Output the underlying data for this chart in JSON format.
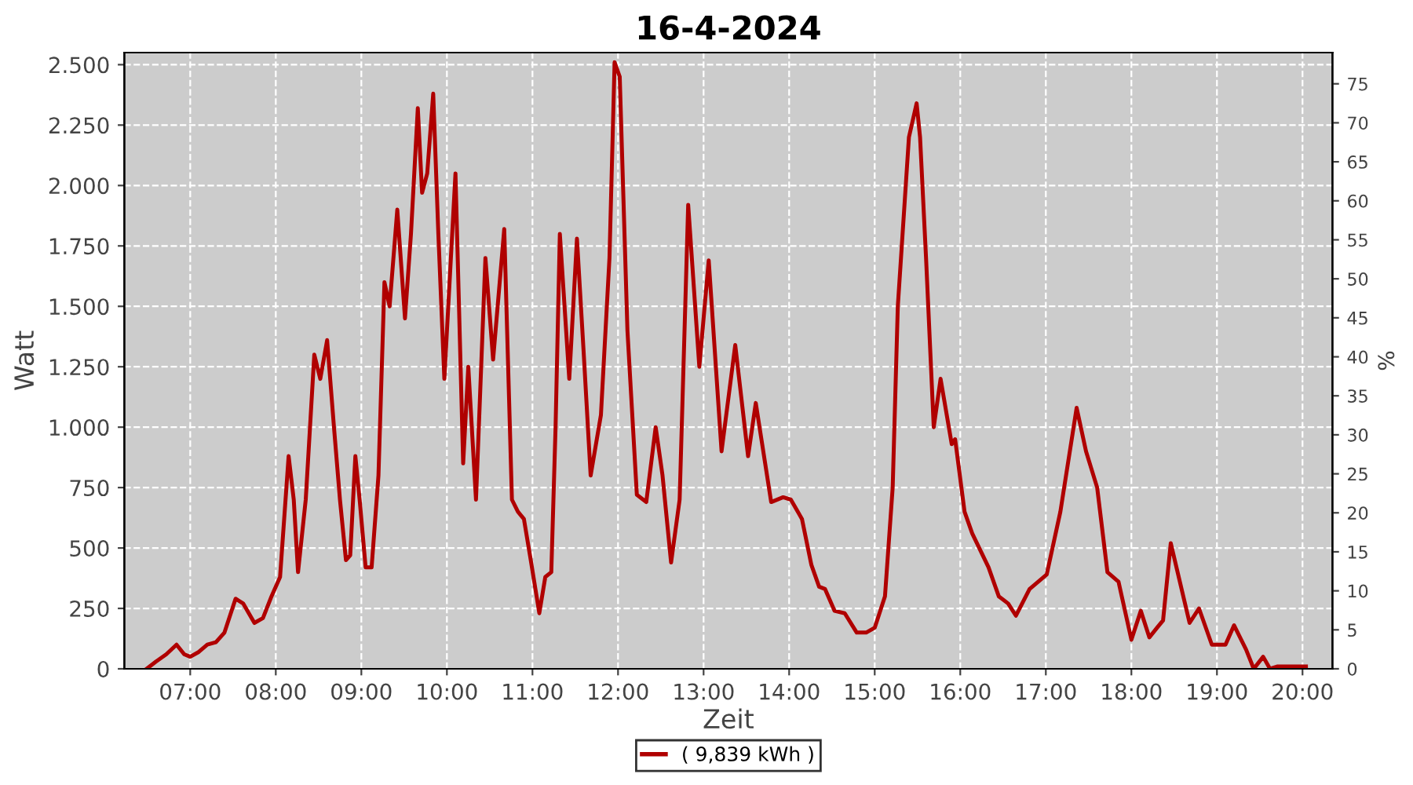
{
  "chart_data": {
    "type": "line",
    "title": "16-4-2024",
    "xlabel": "Zeit",
    "ylabel": "Watt",
    "y2label": "%",
    "xlim": [
      6.23,
      20.35
    ],
    "xticks": [
      {
        "value": 7,
        "label": "07:00"
      },
      {
        "value": 8,
        "label": "08:00"
      },
      {
        "value": 9,
        "label": "09:00"
      },
      {
        "value": 10,
        "label": "10:00"
      },
      {
        "value": 11,
        "label": "11:00"
      },
      {
        "value": 12,
        "label": "12:00"
      },
      {
        "value": 13,
        "label": "13:00"
      },
      {
        "value": 14,
        "label": "14:00"
      },
      {
        "value": 15,
        "label": "15:00"
      },
      {
        "value": 16,
        "label": "16:00"
      },
      {
        "value": 17,
        "label": "17:00"
      },
      {
        "value": 18,
        "label": "18:00"
      },
      {
        "value": 19,
        "label": "19:00"
      },
      {
        "value": 20,
        "label": "20:00"
      }
    ],
    "ylim": [
      0,
      2550
    ],
    "yticks": [
      0,
      {
        "value": 250,
        "label": "250"
      },
      {
        "value": 500,
        "label": "500"
      },
      {
        "value": 750,
        "label": "750"
      },
      {
        "value": 1000,
        "label": "1.000"
      },
      {
        "value": 1250,
        "label": "1.250"
      },
      {
        "value": 1500,
        "label": "1.500"
      },
      {
        "value": 1750,
        "label": "1.750"
      },
      {
        "value": 2000,
        "label": "2.000"
      },
      {
        "value": 2250,
        "label": "2.250"
      },
      {
        "value": 2500,
        "label": "2.500"
      }
    ],
    "y2lim": [
      0,
      79
    ],
    "y2ticks": [
      0,
      5,
      10,
      15,
      20,
      25,
      30,
      35,
      40,
      45,
      50,
      55,
      60,
      65,
      70,
      75
    ],
    "grid": true,
    "legend": "bottom",
    "marker": "none",
    "line_style": "solid",
    "series": [
      {
        "name": "( 9,839 kWh )",
        "color": "#b00000",
        "x": [
          6.49,
          6.6,
          6.72,
          6.84,
          6.93,
          7.0,
          7.1,
          7.2,
          7.3,
          7.4,
          7.53,
          7.62,
          7.75,
          7.85,
          7.95,
          8.05,
          8.15,
          8.21,
          8.26,
          8.35,
          8.45,
          8.52,
          8.6,
          8.68,
          8.75,
          8.82,
          8.87,
          8.93,
          8.98,
          9.05,
          9.12,
          9.2,
          9.27,
          9.33,
          9.42,
          9.51,
          9.58,
          9.66,
          9.71,
          9.77,
          9.84,
          9.9,
          9.97,
          10.1,
          10.19,
          10.25,
          10.34,
          10.45,
          10.54,
          10.67,
          10.76,
          10.83,
          10.9,
          10.98,
          11.08,
          11.15,
          11.22,
          11.27,
          11.32,
          11.43,
          11.52,
          11.6,
          11.68,
          11.8,
          11.9,
          11.96,
          12.02,
          12.11,
          12.22,
          12.33,
          12.44,
          12.52,
          12.62,
          12.72,
          12.82,
          12.95,
          13.06,
          13.21,
          13.37,
          13.52,
          13.61,
          13.79,
          13.93,
          14.02,
          14.15,
          14.26,
          14.35,
          14.42,
          14.53,
          14.65,
          14.79,
          14.9,
          15.0,
          15.12,
          15.21,
          15.27,
          15.4,
          15.49,
          15.53,
          15.6,
          15.69,
          15.77,
          15.9,
          15.94,
          16.05,
          16.14,
          16.33,
          16.45,
          16.56,
          16.65,
          16.81,
          17.01,
          17.17,
          17.36,
          17.47,
          17.6,
          17.72,
          17.85,
          18.0,
          18.11,
          18.21,
          18.3,
          18.37,
          18.46,
          18.68,
          18.79,
          18.94,
          19.1,
          19.2,
          19.34,
          19.43,
          19.54,
          19.62,
          19.71,
          20.04
        ],
        "values": [
          0,
          30,
          60,
          100,
          60,
          50,
          70,
          100,
          110,
          150,
          290,
          270,
          190,
          210,
          300,
          380,
          880,
          700,
          400,
          700,
          1300,
          1200,
          1360,
          1000,
          700,
          450,
          470,
          880,
          700,
          420,
          420,
          800,
          1600,
          1500,
          1900,
          1450,
          1800,
          2320,
          1970,
          2050,
          2380,
          1800,
          1200,
          2050,
          850,
          1250,
          700,
          1700,
          1280,
          1820,
          700,
          650,
          620,
          450,
          230,
          380,
          400,
          1000,
          1800,
          1200,
          1780,
          1300,
          800,
          1050,
          1700,
          2510,
          2450,
          1400,
          720,
          690,
          1000,
          800,
          440,
          700,
          1920,
          1250,
          1690,
          900,
          1340,
          880,
          1100,
          690,
          710,
          700,
          620,
          430,
          340,
          330,
          240,
          230,
          150,
          150,
          170,
          300,
          750,
          1500,
          2200,
          2340,
          2200,
          1700,
          1000,
          1200,
          930,
          950,
          650,
          560,
          420,
          300,
          270,
          220,
          330,
          390,
          650,
          1080,
          900,
          750,
          400,
          360,
          120,
          240,
          130,
          170,
          200,
          520,
          190,
          250,
          100,
          100,
          180,
          80,
          0,
          50,
          0,
          10,
          10
        ]
      }
    ]
  }
}
